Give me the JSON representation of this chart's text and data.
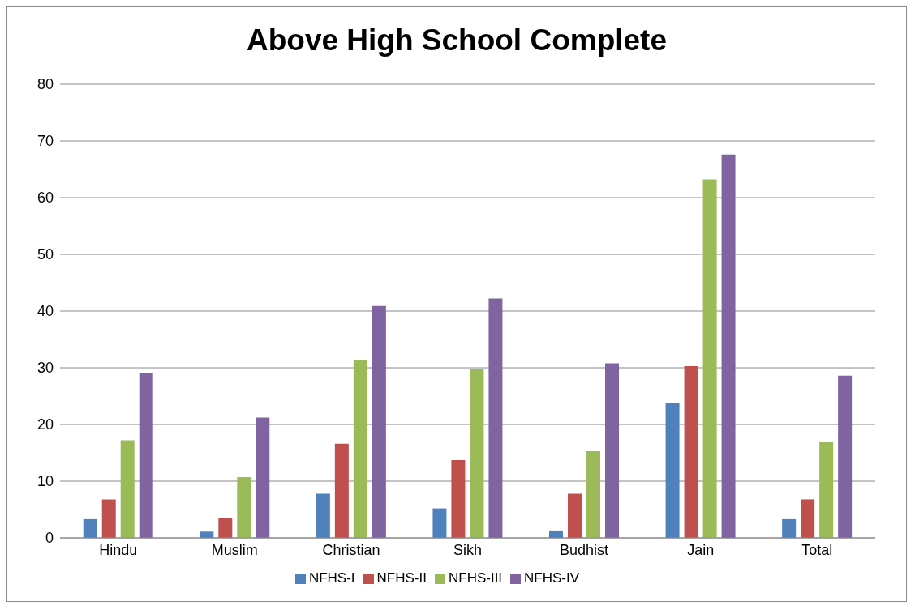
{
  "chart_data": {
    "type": "bar",
    "title": "Above High  School Complete",
    "categories": [
      "Hindu",
      "Muslim",
      "Christian",
      "Sikh",
      "Budhist",
      "Jain",
      "Total"
    ],
    "series": [
      {
        "name": "NFHS-I",
        "color": "#4f81bd",
        "values": [
          3.3,
          1.1,
          7.8,
          5.2,
          1.3,
          23.8,
          3.3
        ]
      },
      {
        "name": "NFHS-II",
        "color": "#c0504d",
        "values": [
          6.8,
          3.5,
          16.6,
          13.7,
          7.8,
          30.3,
          6.8
        ]
      },
      {
        "name": "NFHS-III",
        "color": "#9bbb59",
        "values": [
          17.2,
          10.7,
          31.4,
          29.8,
          15.3,
          63.2,
          17.0
        ]
      },
      {
        "name": "NFHS-IV",
        "color": "#8064a2",
        "values": [
          29.1,
          21.2,
          40.9,
          42.2,
          30.8,
          67.6,
          28.6
        ]
      }
    ],
    "ylim": [
      0,
      80
    ],
    "yticks": [
      0,
      10,
      20,
      30,
      40,
      50,
      60,
      70,
      80
    ],
    "grid": "y",
    "legend": "bottom"
  }
}
